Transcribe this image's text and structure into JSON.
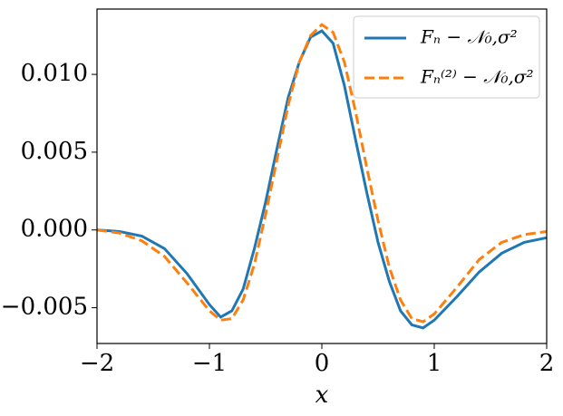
{
  "chart_data": {
    "type": "line",
    "x": [
      -2,
      -1.8,
      -1.6,
      -1.4,
      -1.2,
      -1.0,
      -0.9,
      -0.8,
      -0.7,
      -0.6,
      -0.5,
      -0.4,
      -0.3,
      -0.2,
      -0.1,
      0,
      0.1,
      0.2,
      0.3,
      0.4,
      0.5,
      0.6,
      0.7,
      0.8,
      0.9,
      1.0,
      1.2,
      1.4,
      1.6,
      1.8,
      2.0
    ],
    "series": [
      {
        "name": "Fₙ − 𝒩₀,σ²",
        "color": "#1f77b4",
        "dash": false,
        "values": [
          0,
          -0.0001,
          -0.0004,
          -0.0012,
          -0.0028,
          -0.0048,
          -0.0056,
          -0.0052,
          -0.0038,
          -0.0012,
          0.0018,
          0.0052,
          0.0085,
          0.0108,
          0.0124,
          0.0128,
          0.012,
          0.0093,
          0.0058,
          0.0024,
          -0.0008,
          -0.0033,
          -0.0052,
          -0.0061,
          -0.0063,
          -0.0058,
          -0.0043,
          -0.0027,
          -0.0015,
          -0.0008,
          -0.0005
        ]
      },
      {
        "name": "Fₙ⁽²⁾ − 𝒩₀,σ²",
        "color": "#ff7f0e",
        "dash": true,
        "values": [
          0,
          -0.0002,
          -0.0007,
          -0.0017,
          -0.0034,
          -0.0052,
          -0.0058,
          -0.0057,
          -0.0045,
          -0.0022,
          0.001,
          0.0045,
          0.008,
          0.0108,
          0.0125,
          0.0132,
          0.0127,
          0.0108,
          0.0076,
          0.004,
          0.0006,
          -0.0024,
          -0.0045,
          -0.0057,
          -0.0059,
          -0.0054,
          -0.0037,
          -0.0019,
          -0.0008,
          -0.0003,
          -0.0001
        ]
      }
    ],
    "x_label": "x",
    "xlim": [
      -2,
      2
    ],
    "xticks": [
      {
        "value": -2,
        "label": "−2"
      },
      {
        "value": -1,
        "label": "−1"
      },
      0,
      1,
      2
    ],
    "ylim": [
      -0.0073,
      0.0142
    ],
    "yticks": [
      {
        "value": -0.005,
        "label": "−0.005"
      },
      {
        "value": 0,
        "label": "0.000"
      },
      {
        "value": 0.005,
        "label": "0.005"
      },
      {
        "value": 0.01,
        "label": "0.010"
      }
    ],
    "legend": "upper right"
  }
}
